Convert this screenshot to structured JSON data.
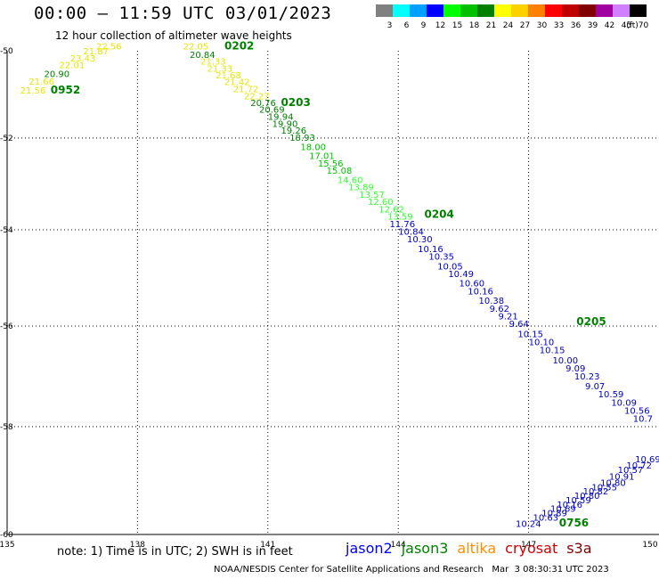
{
  "header": {
    "title": "00:00 – 11:59 UTC 03/01/2023",
    "subtitle": "12 hour collection of altimeter wave heights"
  },
  "colorbar": {
    "unit": "(ft)",
    "bins": [
      {
        "label": "3",
        "color": "#808080"
      },
      {
        "label": "6",
        "color": "#00ffff"
      },
      {
        "label": "9",
        "color": "#00a0ff"
      },
      {
        "label": "12",
        "color": "#0000ff"
      },
      {
        "label": "15",
        "color": "#00ff00"
      },
      {
        "label": "18",
        "color": "#00c000"
      },
      {
        "label": "21",
        "color": "#008000"
      },
      {
        "label": "24",
        "color": "#ffff00"
      },
      {
        "label": "27",
        "color": "#ffd000"
      },
      {
        "label": "30",
        "color": "#ff8000"
      },
      {
        "label": "33",
        "color": "#ff0000"
      },
      {
        "label": "36",
        "color": "#c00000"
      },
      {
        "label": "39",
        "color": "#800000"
      },
      {
        "label": "42",
        "color": "#a000a0"
      },
      {
        "label": "45",
        "color": "#d080ff"
      },
      {
        "label": "70",
        "color": "#000000"
      }
    ]
  },
  "map": {
    "lon_range": [
      135,
      150
    ],
    "lat_range": [
      -60,
      -50
    ],
    "lon_ticks": [
      "135",
      "138",
      "141",
      "144",
      "147",
      "150"
    ],
    "lat_ticks": [
      "-50",
      "-52",
      "-54",
      "-56",
      "-58",
      "-60"
    ],
    "grid": "dotted",
    "time_labels": [
      {
        "text": "0952",
        "lon": 136.0,
        "lat": -50.98
      },
      {
        "text": "0202",
        "lon": 140.0,
        "lat": -49.97
      },
      {
        "text": "0203",
        "lon": 141.3,
        "lat": -51.27
      },
      {
        "text": "0204",
        "lon": 144.6,
        "lat": -53.74
      },
      {
        "text": "0205",
        "lon": 148.1,
        "lat": -55.98
      },
      {
        "text": "0756",
        "lon": 147.7,
        "lat": -59.85
      }
    ],
    "tracks": [
      {
        "name": "track-0952",
        "points": [
          {
            "v": "21.56",
            "lon": 135.3,
            "lat": -50.98,
            "color": "#e6e600"
          },
          {
            "v": "21.66",
            "lon": 135.5,
            "lat": -50.78,
            "color": "#e6e600"
          },
          {
            "v": "20.90",
            "lon": 135.85,
            "lat": -50.6,
            "color": "#008000"
          },
          {
            "v": "22.01",
            "lon": 136.2,
            "lat": -50.4,
            "color": "#e6e600"
          },
          {
            "v": "23.43",
            "lon": 136.45,
            "lat": -50.24,
            "color": "#e6e600"
          },
          {
            "v": "21.87",
            "lon": 136.75,
            "lat": -50.08,
            "color": "#e6e600"
          },
          {
            "v": "22.56",
            "lon": 137.05,
            "lat": -49.97,
            "color": "#e6e600"
          }
        ]
      },
      {
        "name": "track-0202",
        "points": [
          {
            "v": "22.05",
            "lon": 139.05,
            "lat": -49.97,
            "color": "#e6e600"
          },
          {
            "v": "20.84",
            "lon": 139.2,
            "lat": -50.16,
            "color": "#008000"
          },
          {
            "v": "21.33",
            "lon": 139.45,
            "lat": -50.32,
            "color": "#e6e600"
          },
          {
            "v": "21.33",
            "lon": 139.6,
            "lat": -50.48,
            "color": "#e6e600"
          },
          {
            "v": "21.68",
            "lon": 139.8,
            "lat": -50.63,
            "color": "#e6e600"
          },
          {
            "v": "21.42",
            "lon": 140.0,
            "lat": -50.79,
            "color": "#e6e600"
          },
          {
            "v": "21.72",
            "lon": 140.2,
            "lat": -50.95,
            "color": "#e6e600"
          },
          {
            "v": "22.27",
            "lon": 140.45,
            "lat": -51.11,
            "color": "#e6e600"
          },
          {
            "v": "20.76",
            "lon": 140.6,
            "lat": -51.27,
            "color": "#008000"
          },
          {
            "v": "20.69",
            "lon": 140.8,
            "lat": -51.42,
            "color": "#008000"
          },
          {
            "v": "19.94",
            "lon": 141.0,
            "lat": -51.58,
            "color": "#008000"
          },
          {
            "v": "19.90",
            "lon": 141.1,
            "lat": -51.74,
            "color": "#008000"
          },
          {
            "v": "19.26",
            "lon": 141.3,
            "lat": -51.9,
            "color": "#008000"
          },
          {
            "v": "18.93",
            "lon": 141.5,
            "lat": -52.06,
            "color": "#008000"
          },
          {
            "v": "18.00",
            "lon": 141.75,
            "lat": -52.26,
            "color": "#00c000"
          },
          {
            "v": "17.01",
            "lon": 141.95,
            "lat": -52.46,
            "color": "#00c000"
          },
          {
            "v": "15.56",
            "lon": 142.15,
            "lat": -52.62,
            "color": "#00c000"
          },
          {
            "v": "15.08",
            "lon": 142.35,
            "lat": -52.78,
            "color": "#00c000"
          },
          {
            "v": "14.60",
            "lon": 142.6,
            "lat": -52.98,
            "color": "#33ff33"
          },
          {
            "v": "13.89",
            "lon": 142.85,
            "lat": -53.14,
            "color": "#33ff33"
          },
          {
            "v": "13.57",
            "lon": 143.1,
            "lat": -53.3,
            "color": "#33ff33"
          },
          {
            "v": "12.60",
            "lon": 143.3,
            "lat": -53.46,
            "color": "#33ff33"
          },
          {
            "v": "12.62",
            "lon": 143.55,
            "lat": -53.62,
            "color": "#33ff33"
          },
          {
            "v": "13.59",
            "lon": 143.75,
            "lat": -53.78,
            "color": "#33ff33"
          },
          {
            "v": "11.76",
            "lon": 143.8,
            "lat": -53.94,
            "color": "#0000c0"
          },
          {
            "v": "10.84",
            "lon": 144.0,
            "lat": -54.1,
            "color": "#0000c0"
          },
          {
            "v": "10.30",
            "lon": 144.2,
            "lat": -54.26,
            "color": "#0000c0"
          },
          {
            "v": "10.16",
            "lon": 144.45,
            "lat": -54.46,
            "color": "#0000c0"
          },
          {
            "v": "10.35",
            "lon": 144.7,
            "lat": -54.62,
            "color": "#0000c0"
          },
          {
            "v": "10.05",
            "lon": 144.9,
            "lat": -54.82,
            "color": "#0000c0"
          },
          {
            "v": "10.49",
            "lon": 145.15,
            "lat": -54.98,
            "color": "#0000c0"
          },
          {
            "v": "10.60",
            "lon": 145.4,
            "lat": -55.18,
            "color": "#0000c0"
          },
          {
            "v": "10.16",
            "lon": 145.6,
            "lat": -55.34,
            "color": "#0000c0"
          },
          {
            "v": "10.38",
            "lon": 145.85,
            "lat": -55.54,
            "color": "#0000c0"
          },
          {
            "v": "9.62",
            "lon": 146.1,
            "lat": -55.7,
            "color": "#0000c0"
          },
          {
            "v": "9.21",
            "lon": 146.3,
            "lat": -55.86,
            "color": "#0000c0"
          },
          {
            "v": "9.64",
            "lon": 146.55,
            "lat": -56.02,
            "color": "#0000c0"
          },
          {
            "v": "10.15",
            "lon": 146.75,
            "lat": -56.22,
            "color": "#0000c0"
          },
          {
            "v": "10.10",
            "lon": 147.0,
            "lat": -56.38,
            "color": "#0000c0"
          },
          {
            "v": "10.15",
            "lon": 147.25,
            "lat": -56.54,
            "color": "#0000c0"
          },
          {
            "v": "10.00",
            "lon": 147.55,
            "lat": -56.74,
            "color": "#0000c0"
          },
          {
            "v": "9.09",
            "lon": 147.85,
            "lat": -56.9,
            "color": "#0000c0"
          },
          {
            "v": "10.23",
            "lon": 148.05,
            "lat": -57.06,
            "color": "#0000c0"
          },
          {
            "v": "9.07",
            "lon": 148.3,
            "lat": -57.26,
            "color": "#0000c0"
          },
          {
            "v": "10.59",
            "lon": 148.6,
            "lat": -57.42,
            "color": "#0000c0"
          },
          {
            "v": "10.09",
            "lon": 148.9,
            "lat": -57.58,
            "color": "#0000c0"
          },
          {
            "v": "10.56",
            "lon": 149.2,
            "lat": -57.74,
            "color": "#0000c0"
          },
          {
            "v": "10.7",
            "lon": 149.4,
            "lat": -57.9,
            "color": "#0000c0"
          }
        ]
      },
      {
        "name": "track-0756",
        "points": [
          {
            "v": "10.24",
            "lon": 146.7,
            "lat": -59.86,
            "color": "#0000c0"
          },
          {
            "v": "10.63",
            "lon": 147.1,
            "lat": -59.74,
            "color": "#0000c0"
          },
          {
            "v": "10.89",
            "lon": 147.3,
            "lat": -59.66,
            "color": "#0000c0"
          },
          {
            "v": "10.69",
            "lon": 147.5,
            "lat": -59.58,
            "color": "#0000c0"
          },
          {
            "v": "10.16",
            "lon": 147.65,
            "lat": -59.5,
            "color": "#0000c0"
          },
          {
            "v": "10.59",
            "lon": 147.85,
            "lat": -59.42,
            "color": "#0000c0"
          },
          {
            "v": "10.80",
            "lon": 148.05,
            "lat": -59.34,
            "color": "#0000c0"
          },
          {
            "v": "10.82",
            "lon": 148.25,
            "lat": -59.26,
            "color": "#0000c0"
          },
          {
            "v": "10.55",
            "lon": 148.45,
            "lat": -59.18,
            "color": "#0000c0"
          },
          {
            "v": "10.80",
            "lon": 148.65,
            "lat": -59.1,
            "color": "#0000c0"
          },
          {
            "v": "10.91",
            "lon": 148.85,
            "lat": -58.98,
            "color": "#0000c0"
          },
          {
            "v": "10.57",
            "lon": 149.05,
            "lat": -58.86,
            "color": "#0000c0"
          },
          {
            "v": "10.72",
            "lon": 149.25,
            "lat": -58.78,
            "color": "#0000c0"
          },
          {
            "v": "10.69",
            "lon": 149.45,
            "lat": -58.66,
            "color": "#0000c0"
          }
        ]
      }
    ]
  },
  "note": "note: 1) Time is in UTC; 2) SWH is in feet",
  "legend": [
    {
      "label": "jason2",
      "color": "#0000ff"
    },
    {
      "label": "jason3",
      "color": "#008000"
    },
    {
      "label": "altika",
      "color": "#ff8c00"
    },
    {
      "label": "cryosat",
      "color": "#d00000"
    },
    {
      "label": "s3a",
      "color": "#800000"
    }
  ],
  "footer": "NOAA/NESDIS Center for Satellite Applications and Research   Mar  3 08:30:31 UTC 2023"
}
